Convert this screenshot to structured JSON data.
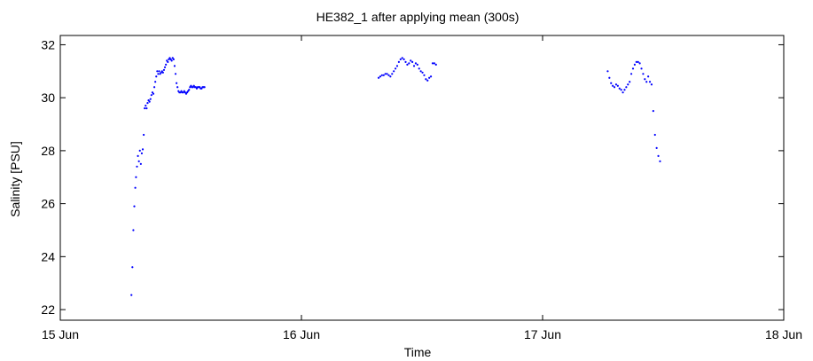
{
  "chart_data": {
    "type": "scatter",
    "title": "HE382_1 after applying mean (300s)",
    "xlabel": "Time",
    "ylabel": "Salinity [PSU]",
    "xlim": [
      15.0,
      18.0
    ],
    "ylim": [
      21.6,
      32.35
    ],
    "x_ticks": [
      {
        "value": 15,
        "label": "15 Jun"
      },
      {
        "value": 16,
        "label": "16 Jun"
      },
      {
        "value": 17,
        "label": "17 Jun"
      },
      {
        "value": 18,
        "label": "18 Jun"
      }
    ],
    "y_ticks": [
      {
        "value": 22,
        "label": "22"
      },
      {
        "value": 24,
        "label": "24"
      },
      {
        "value": 26,
        "label": "26"
      },
      {
        "value": 28,
        "label": "28"
      },
      {
        "value": 30,
        "label": "30"
      },
      {
        "value": 32,
        "label": "32"
      }
    ],
    "grid": false,
    "marker_color": "#0000ff",
    "series": [
      {
        "x": [
          15.295,
          15.299,
          15.303,
          15.307,
          15.311,
          15.314,
          15.318,
          15.322,
          15.326,
          15.33,
          15.334,
          15.338,
          15.342,
          15.346,
          15.35,
          15.354,
          15.358,
          15.362,
          15.366,
          15.37,
          15.374,
          15.378,
          15.382,
          15.386,
          15.39,
          15.394,
          15.398,
          15.402,
          15.406,
          15.41,
          15.414,
          15.418,
          15.422,
          15.426,
          15.43,
          15.434,
          15.438,
          15.442,
          15.446,
          15.45,
          15.454,
          15.458,
          15.462,
          15.466,
          15.47,
          15.474,
          15.478,
          15.482,
          15.486,
          15.49,
          15.494,
          15.498,
          15.502,
          15.506,
          15.51,
          15.514,
          15.518,
          15.522,
          15.526,
          15.53,
          15.534,
          15.538,
          15.542,
          15.546,
          15.55,
          15.554,
          15.558,
          15.562,
          15.566,
          15.57,
          15.574,
          15.578,
          15.582,
          15.586,
          15.59,
          15.594,
          15.598,
          16.32,
          16.327,
          16.334,
          16.341,
          16.348,
          16.355,
          16.362,
          16.369,
          16.376,
          16.383,
          16.39,
          16.397,
          16.404,
          16.411,
          16.418,
          16.425,
          16.432,
          16.439,
          16.446,
          16.453,
          16.46,
          16.467,
          16.474,
          16.481,
          16.488,
          16.495,
          16.502,
          16.509,
          16.516,
          16.523,
          16.53,
          16.537,
          16.544,
          16.551,
          16.558,
          17.27,
          17.277,
          17.284,
          17.291,
          17.298,
          17.305,
          17.312,
          17.319,
          17.326,
          17.333,
          17.34,
          17.347,
          17.354,
          17.361,
          17.368,
          17.375,
          17.382,
          17.389,
          17.396,
          17.403,
          17.41,
          17.417,
          17.424,
          17.431,
          17.438,
          17.445,
          17.452,
          17.459,
          17.466,
          17.473,
          17.48,
          17.487
        ],
        "y": [
          22.55,
          23.6,
          25.0,
          25.9,
          26.6,
          27.0,
          27.4,
          27.8,
          27.6,
          28.0,
          27.5,
          27.9,
          28.05,
          28.6,
          29.6,
          29.7,
          29.6,
          29.8,
          29.9,
          29.85,
          29.95,
          30.1,
          30.2,
          30.15,
          30.4,
          30.6,
          30.8,
          31.0,
          30.9,
          31.0,
          30.9,
          30.95,
          31.0,
          30.95,
          31.05,
          31.15,
          31.25,
          31.4,
          31.35,
          31.45,
          31.5,
          31.45,
          31.4,
          31.5,
          31.45,
          31.2,
          30.9,
          30.55,
          30.4,
          30.25,
          30.2,
          30.2,
          30.25,
          30.2,
          30.2,
          30.25,
          30.2,
          30.15,
          30.2,
          30.25,
          30.3,
          30.4,
          30.45,
          30.4,
          30.4,
          30.45,
          30.4,
          30.4,
          30.35,
          30.4,
          30.4,
          30.4,
          30.35,
          30.35,
          30.4,
          30.4,
          30.4,
          30.75,
          30.8,
          30.85,
          30.85,
          30.9,
          30.9,
          30.85,
          30.8,
          30.9,
          31.0,
          31.1,
          31.2,
          31.35,
          31.45,
          31.5,
          31.45,
          31.35,
          31.25,
          31.3,
          31.4,
          31.35,
          31.2,
          31.3,
          31.25,
          31.1,
          31.0,
          30.95,
          30.85,
          30.7,
          30.65,
          30.75,
          30.8,
          31.3,
          31.3,
          31.25,
          31.0,
          30.75,
          30.55,
          30.45,
          30.4,
          30.5,
          30.45,
          30.35,
          30.3,
          30.2,
          30.3,
          30.4,
          30.5,
          30.6,
          30.9,
          31.1,
          31.25,
          31.35,
          31.35,
          31.3,
          31.1,
          30.9,
          30.7,
          30.6,
          30.8,
          30.6,
          30.5,
          29.5,
          28.6,
          28.1,
          27.8,
          27.6
        ]
      }
    ]
  }
}
